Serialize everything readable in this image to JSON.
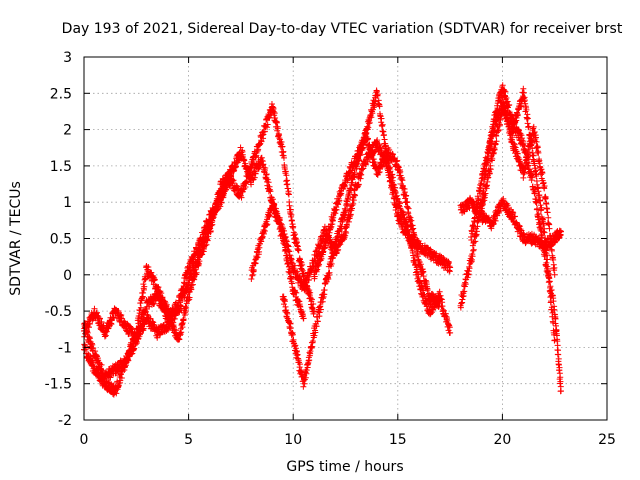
{
  "chart_data": {
    "type": "scatter",
    "title": "Day 193 of 2021, Sidereal Day-to-day VTEC variation (SDTVAR) for receiver brst",
    "xlabel": "GPS time / hours",
    "ylabel": "SDTVAR / TECUs",
    "xlim": [
      0,
      25
    ],
    "ylim": [
      -2,
      3
    ],
    "xticks": [
      0,
      5,
      10,
      15,
      20,
      25
    ],
    "yticks": [
      -2,
      -1.5,
      -1,
      -0.5,
      0,
      0.5,
      1,
      1.5,
      2,
      2.5,
      3
    ],
    "xtick_labels": [
      "0",
      "5",
      "10",
      "15",
      "20",
      "25"
    ],
    "ytick_labels": [
      "-2",
      "-1.5",
      "-1",
      "-0.5",
      "0",
      "0.5",
      "1",
      "1.5",
      "2",
      "2.5",
      "3"
    ],
    "grid": true,
    "marker": "+",
    "series": [
      {
        "name": "SDTVAR",
        "color": "#ff0000",
        "description": "multiple overlapping satellite tracks, approximate values",
        "tracks": [
          {
            "x": [
              0,
              0.5,
              1.0,
              1.5,
              2.0,
              2.5,
              3.0,
              3.5,
              4.0,
              4.5,
              5.0,
              5.5,
              6.0,
              6.5,
              7.0,
              7.5,
              8.0,
              8.5,
              9.0,
              9.5,
              10.0,
              10.5,
              11.0
            ],
            "y": [
              -0.7,
              -1.1,
              -1.4,
              -1.3,
              -1.2,
              -0.9,
              -0.6,
              -0.8,
              -0.7,
              -0.5,
              -0.1,
              0.3,
              0.7,
              1.1,
              1.3,
              1.1,
              1.5,
              1.9,
              2.3,
              1.7,
              0.6,
              0.0,
              -0.5
            ]
          },
          {
            "x": [
              0,
              0.5,
              1.0,
              1.5,
              2.0,
              2.5,
              3.0,
              3.5,
              4.0,
              4.5,
              5.0,
              5.5,
              6.0,
              6.5,
              7.0,
              7.5,
              8.0,
              8.5,
              9.0,
              9.5,
              10.0,
              10.5
            ],
            "y": [
              -0.8,
              -0.5,
              -0.8,
              -0.5,
              -0.7,
              -0.9,
              -0.4,
              -0.3,
              -0.6,
              -0.4,
              0.1,
              0.4,
              0.8,
              1.0,
              1.4,
              1.7,
              1.3,
              1.6,
              1.0,
              0.5,
              -0.2,
              -0.6
            ]
          },
          {
            "x": [
              0,
              0.5,
              1.0,
              1.5,
              2.0,
              2.5,
              3.0,
              3.5,
              4.0,
              4.5,
              5.0,
              5.5,
              6.0,
              6.5,
              7.0
            ],
            "y": [
              -1.0,
              -1.3,
              -1.5,
              -1.6,
              -1.2,
              -0.8,
              0.1,
              -0.2,
              -0.5,
              -0.9,
              -0.3,
              0.2,
              0.6,
              1.2,
              1.4
            ]
          },
          {
            "x": [
              8.0,
              8.5,
              9.0,
              9.5,
              10.0,
              10.5,
              11.0,
              11.5,
              12.0,
              12.5,
              13.0,
              13.5,
              14.0,
              14.5,
              15.0,
              15.5,
              16.0,
              16.5,
              17.0,
              17.5
            ],
            "y": [
              0.0,
              0.5,
              1.0,
              0.6,
              0.1,
              -0.2,
              0.2,
              0.6,
              0.3,
              0.6,
              1.2,
              1.6,
              1.8,
              1.5,
              0.8,
              0.5,
              0.4,
              0.3,
              0.2,
              0.1
            ]
          },
          {
            "x": [
              9.5,
              10.0,
              10.5,
              11.0,
              11.5,
              12.0,
              12.5,
              13.0,
              13.5,
              14.0,
              14.5,
              15.0,
              15.5,
              16.0,
              16.5,
              17.0,
              17.5
            ],
            "y": [
              -0.3,
              -0.9,
              -1.5,
              -0.8,
              -0.2,
              0.4,
              0.9,
              1.5,
              2.0,
              2.5,
              1.6,
              1.0,
              0.6,
              -0.1,
              -0.5,
              -0.3,
              -0.8
            ]
          },
          {
            "x": [
              11.0,
              11.5,
              12.0,
              12.5,
              13.0,
              13.5,
              14.0,
              14.5,
              15.0,
              15.5,
              16.0,
              16.5,
              17.0
            ],
            "y": [
              0.0,
              0.4,
              0.9,
              1.3,
              1.6,
              1.9,
              1.4,
              1.7,
              1.5,
              0.9,
              0.2,
              -0.3,
              -0.4
            ]
          },
          {
            "x": [
              18.0,
              18.5,
              19.0,
              19.5,
              20.0,
              20.5,
              21.0,
              21.5,
              22.0,
              22.5,
              22.8
            ],
            "y": [
              0.9,
              1.0,
              0.8,
              0.7,
              1.0,
              0.8,
              0.5,
              0.5,
              0.4,
              0.5,
              0.6
            ]
          },
          {
            "x": [
              18.0,
              18.5,
              19.0,
              19.5,
              20.0,
              20.5,
              21.0,
              21.5,
              22.0,
              22.5,
              22.8
            ],
            "y": [
              -0.4,
              0.2,
              1.0,
              2.0,
              2.6,
              2.1,
              1.8,
              1.2,
              0.3,
              -0.5,
              -1.6
            ]
          },
          {
            "x": [
              19.0,
              19.5,
              20.0,
              20.5,
              21.0,
              21.5,
              22.0,
              22.5
            ],
            "y": [
              0.9,
              1.6,
              2.3,
              2.0,
              2.5,
              1.6,
              0.6,
              -0.9
            ]
          },
          {
            "x": [
              18.5,
              19.0,
              19.5,
              20.0,
              20.5,
              21.0,
              21.5,
              22.0,
              22.5
            ],
            "y": [
              0.5,
              1.3,
              1.9,
              2.4,
              1.8,
              1.4,
              2.0,
              1.2,
              0.0
            ]
          }
        ]
      }
    ]
  }
}
